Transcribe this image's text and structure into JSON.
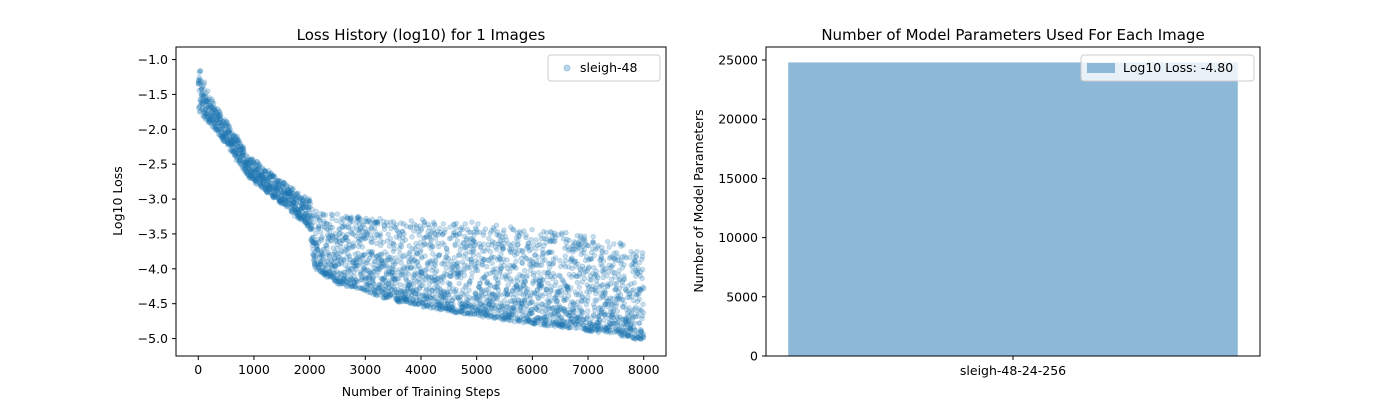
{
  "chart_data": [
    {
      "type": "scatter",
      "title": "Loss History (log10) for 1 Images",
      "xlabel": "Number of Training Steps",
      "ylabel": "Log10 Loss",
      "xlim": [
        -400,
        8400
      ],
      "ylim": [
        -5.25,
        -0.82
      ],
      "xticks": [
        0,
        1000,
        2000,
        3000,
        4000,
        5000,
        6000,
        7000,
        8000
      ],
      "yticks": [
        -5.0,
        -4.5,
        -4.0,
        -3.5,
        -3.0,
        -2.5,
        -2.0,
        -1.5,
        -1.0
      ],
      "xtick_labels": [
        "0",
        "1000",
        "2000",
        "3000",
        "4000",
        "5000",
        "6000",
        "7000",
        "8000"
      ],
      "ytick_labels": [
        "−5.0",
        "−4.5",
        "−4.0",
        "−3.5",
        "−3.0",
        "−2.5",
        "−2.0",
        "−1.5",
        "−1.0"
      ],
      "legend_position": "upper-right",
      "grid": false,
      "series": [
        {
          "name": "sleigh-48",
          "color": "#1f77b4",
          "alpha": 0.25,
          "x": [
            0,
            100,
            200,
            300,
            400,
            500,
            600,
            700,
            800,
            900,
            1000,
            1100,
            1200,
            1300,
            1400,
            1500,
            1600,
            1700,
            1800,
            1900,
            2000,
            2050,
            2100,
            2200,
            2300,
            2400,
            2500,
            2750,
            3000,
            3500,
            4000,
            4500,
            5000,
            5500,
            6000,
            6500,
            7000,
            7500,
            8000
          ],
          "y_lower": [
            -1.78,
            -1.82,
            -1.92,
            -2.0,
            -2.1,
            -2.2,
            -2.32,
            -2.46,
            -2.56,
            -2.66,
            -2.74,
            -2.8,
            -2.88,
            -2.94,
            -3.0,
            -3.06,
            -3.12,
            -3.2,
            -3.28,
            -3.34,
            -3.42,
            -3.8,
            -3.98,
            -4.05,
            -4.1,
            -4.14,
            -4.2,
            -4.26,
            -4.32,
            -4.45,
            -4.53,
            -4.6,
            -4.66,
            -4.72,
            -4.78,
            -4.82,
            -4.88,
            -4.93,
            -5.02
          ],
          "y_upper": [
            -1.02,
            -1.3,
            -1.5,
            -1.62,
            -1.78,
            -1.86,
            -2.0,
            -2.12,
            -2.24,
            -2.36,
            -2.44,
            -2.5,
            -2.56,
            -2.62,
            -2.68,
            -2.74,
            -2.8,
            -2.86,
            -2.92,
            -2.96,
            -3.0,
            -3.12,
            -3.15,
            -3.18,
            -3.2,
            -3.2,
            -3.2,
            -3.22,
            -3.25,
            -3.28,
            -3.3,
            -3.33,
            -3.35,
            -3.38,
            -3.42,
            -3.45,
            -3.5,
            -3.6,
            -3.7
          ]
        }
      ]
    },
    {
      "type": "bar",
      "title": "Number of Model Parameters Used For Each Image",
      "xlabel": "",
      "ylabel": "Number of Model Parameters",
      "categories": [
        "sleigh-48-24-256"
      ],
      "values": [
        24800
      ],
      "ylim": [
        0,
        26100
      ],
      "yticks": [
        0,
        5000,
        10000,
        15000,
        20000,
        25000
      ],
      "ytick_labels": [
        "0",
        "5000",
        "10000",
        "15000",
        "20000",
        "25000"
      ],
      "legend_position": "upper-right",
      "grid": false,
      "series": [
        {
          "name": "Log10 Loss: -4.80",
          "color": "#8db8d8",
          "values": [
            24800
          ]
        }
      ]
    }
  ]
}
